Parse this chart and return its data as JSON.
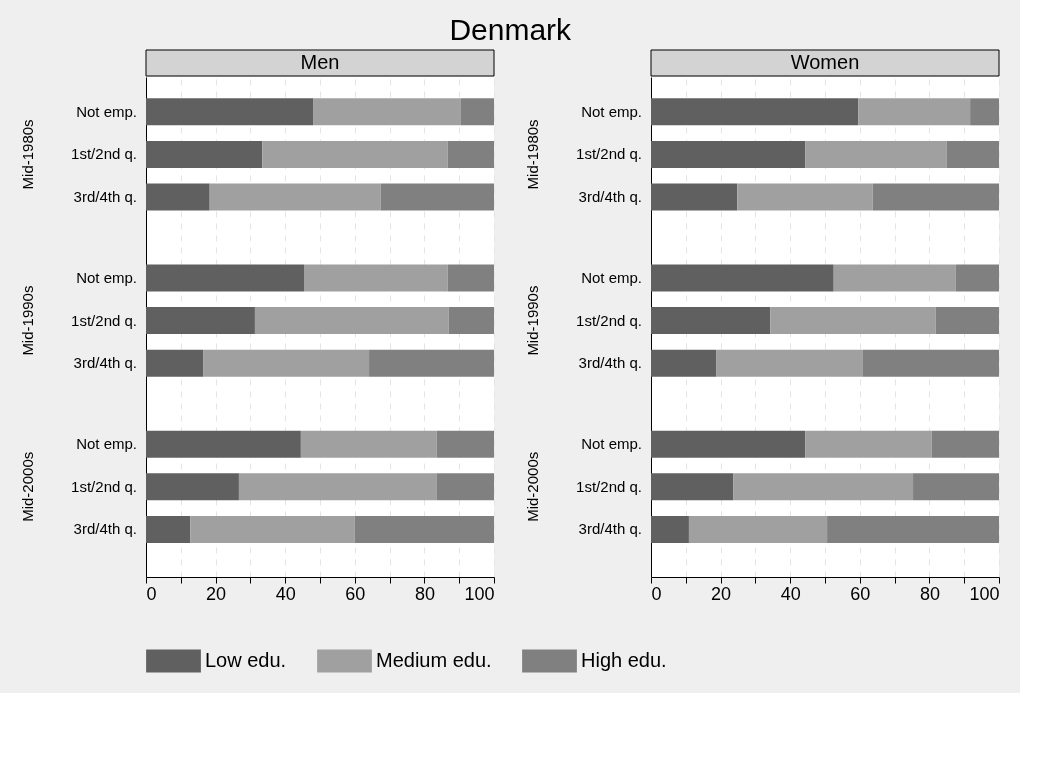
{
  "chart_data": [
    {
      "type": "bar",
      "orientation": "horizontal",
      "stacked": true,
      "title": "Denmark",
      "subtitle": "Men",
      "categories": [
        "Not emp.",
        "1st/2nd q.",
        "3rd/4th q.",
        "Not emp.",
        "1st/2nd q.",
        "3rd/4th q.",
        "Not emp.",
        "1st/2nd q.",
        "3rd/4th q."
      ],
      "annotations": [
        "Mid-1980s",
        "Mid-1990s",
        "Mid-2000s"
      ],
      "series": [
        {
          "name": "Low edu.",
          "color": "#606060",
          "values": [
            48.0,
            33.4,
            18.3,
            45.4,
            31.3,
            16.4,
            44.5,
            26.7,
            12.7
          ]
        },
        {
          "name": "Medium edu.",
          "color": "#a0a0a0",
          "values": [
            42.5,
            53.3,
            49.1,
            41.3,
            55.7,
            47.7,
            39.0,
            56.9,
            47.3
          ]
        },
        {
          "name": "High edu.",
          "color": "#808080",
          "values": [
            9.5,
            13.3,
            32.6,
            13.3,
            13.0,
            35.9,
            16.5,
            16.4,
            40.0
          ]
        }
      ],
      "xlim": [
        0,
        100
      ],
      "xticks": [
        0,
        {
          "value": 10,
          "label": null
        },
        20,
        {
          "value": 30,
          "label": null
        },
        40,
        {
          "value": 50,
          "label": null
        },
        60,
        {
          "value": 70,
          "label": null
        },
        80,
        {
          "value": 90,
          "label": null
        },
        100
      ],
      "grid": true,
      "legend": "bottom"
    },
    {
      "type": "bar",
      "orientation": "horizontal",
      "stacked": true,
      "subtitle": "Women",
      "categories": [
        "Not emp.",
        "1st/2nd q.",
        "3rd/4th q.",
        "Not emp.",
        "1st/2nd q.",
        "3rd/4th q.",
        "Not emp.",
        "1st/2nd q.",
        "3rd/4th q."
      ],
      "annotations": [
        "Mid-1980s",
        "Mid-1990s",
        "Mid-2000s"
      ],
      "series": [
        {
          "name": "Low edu.",
          "color": "#606060",
          "values": [
            59.6,
            44.3,
            24.8,
            52.5,
            34.3,
            18.7,
            44.3,
            23.6,
            10.9
          ]
        },
        {
          "name": "Medium edu.",
          "color": "#a0a0a0",
          "values": [
            32.1,
            40.6,
            38.9,
            35.1,
            47.5,
            42.2,
            36.3,
            51.7,
            39.7
          ]
        },
        {
          "name": "High edu.",
          "color": "#808080",
          "values": [
            8.3,
            15.1,
            36.3,
            12.4,
            18.2,
            39.1,
            19.4,
            24.7,
            49.4
          ]
        }
      ],
      "xlim": [
        0,
        100
      ],
      "xticks": [
        0,
        {
          "value": 10,
          "label": null
        },
        20,
        {
          "value": 30,
          "label": null
        },
        40,
        {
          "value": 50,
          "label": null
        },
        60,
        {
          "value": 70,
          "label": null
        },
        80,
        {
          "value": 90,
          "label": null
        },
        100
      ],
      "grid": true
    }
  ]
}
